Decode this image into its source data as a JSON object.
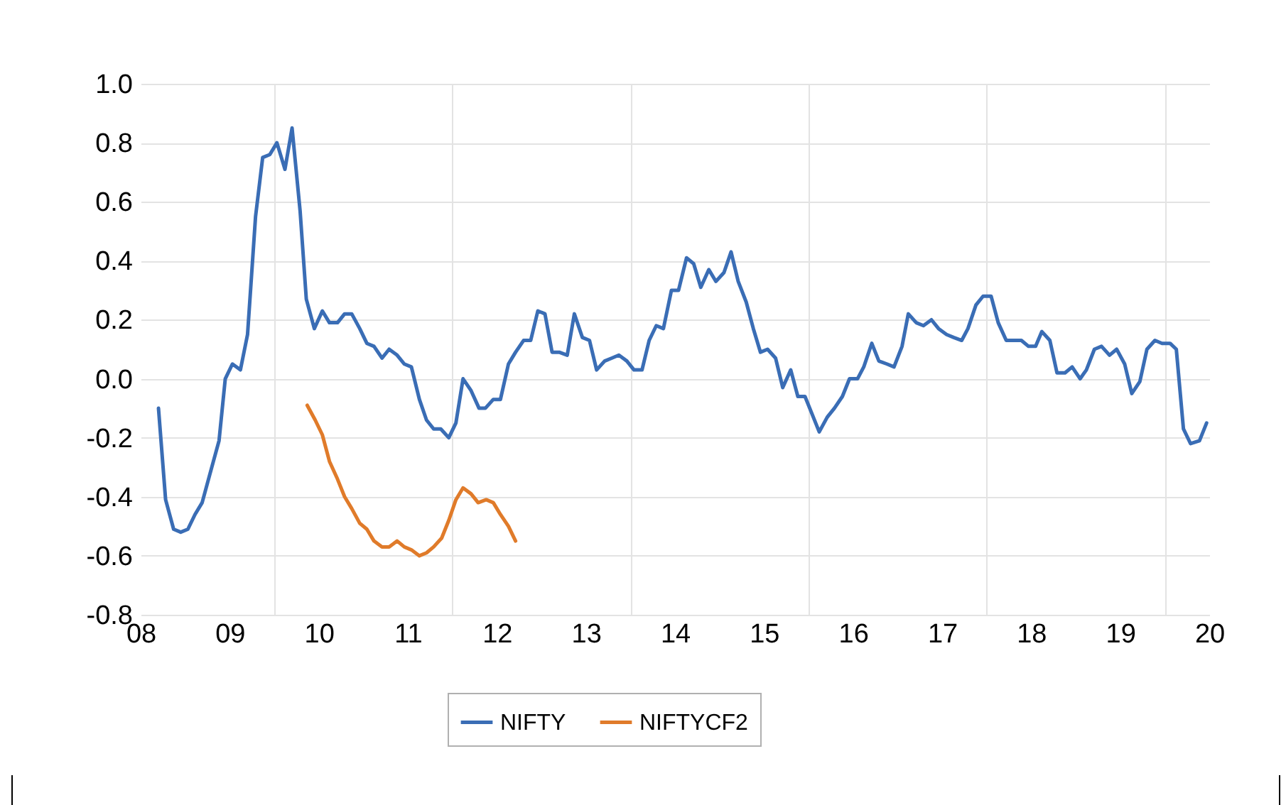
{
  "chart_data": {
    "type": "line",
    "legend": "bottom",
    "grid": true,
    "line_style": "solid",
    "marker": "none",
    "xlim": [
      2008,
      2020
    ],
    "xticks": [
      {
        "value": 2008,
        "label": "08"
      },
      {
        "value": 2009,
        "label": "09"
      },
      {
        "value": 2010,
        "label": "10"
      },
      {
        "value": 2011,
        "label": "11"
      },
      {
        "value": 2012,
        "label": "12"
      },
      {
        "value": 2013,
        "label": "13"
      },
      {
        "value": 2014,
        "label": "14"
      },
      {
        "value": 2015,
        "label": "15"
      },
      {
        "value": 2016,
        "label": "16"
      },
      {
        "value": 2017,
        "label": "17"
      },
      {
        "value": 2018,
        "label": "18"
      },
      {
        "value": 2019,
        "label": "19"
      },
      {
        "value": 2020,
        "label": "20"
      },
      {
        "value": 2009.5,
        "label": null
      },
      {
        "value": 2011.5,
        "label": null
      },
      {
        "value": 2013.5,
        "label": null
      },
      {
        "value": 2015.5,
        "label": null
      },
      {
        "value": 2017.5,
        "label": null
      },
      {
        "value": 2019.5,
        "label": null
      }
    ],
    "ylim": [
      -0.8,
      1.0
    ],
    "yticks": [
      {
        "value": -0.8,
        "label": "-0.8"
      },
      {
        "value": -0.6,
        "label": "-0.6"
      },
      {
        "value": -0.4,
        "label": "-0.4"
      },
      {
        "value": -0.2,
        "label": "-0.2"
      },
      {
        "value": 0,
        "label": "0.0"
      },
      {
        "value": 0.2,
        "label": "0.2"
      },
      {
        "value": 0.4,
        "label": "0.4"
      },
      {
        "value": 0.6,
        "label": "0.6"
      },
      {
        "value": 0.8,
        "label": "0.8"
      },
      {
        "value": 1.0,
        "label": "1.0"
      }
    ],
    "series": [
      {
        "name": "NIFTY",
        "color": "#3a6db5",
        "x": [
          2008.2,
          2008.28,
          2008.37,
          2008.45,
          2008.53,
          2008.61,
          2008.69,
          2008.78,
          2008.88,
          2008.95,
          2009.03,
          2009.12,
          2009.2,
          2009.29,
          2009.37,
          2009.45,
          2009.53,
          2009.62,
          2009.7,
          2009.79,
          2009.86,
          2009.95,
          2010.04,
          2010.12,
          2010.21,
          2010.29,
          2010.37,
          2010.46,
          2010.54,
          2010.62,
          2010.71,
          2010.79,
          2010.88,
          2010.96,
          2011.04,
          2011.13,
          2011.21,
          2011.29,
          2011.37,
          2011.46,
          2011.54,
          2011.62,
          2011.71,
          2011.8,
          2011.87,
          2011.96,
          2012.04,
          2012.13,
          2012.21,
          2012.3,
          2012.38,
          2012.46,
          2012.54,
          2012.62,
          2012.7,
          2012.79,
          2012.87,
          2012.96,
          2013.04,
          2013.12,
          2013.21,
          2013.29,
          2013.37,
          2013.46,
          2013.54,
          2013.63,
          2013.71,
          2013.79,
          2013.87,
          2013.96,
          2014.04,
          2014.13,
          2014.21,
          2014.29,
          2014.38,
          2014.46,
          2014.55,
          2014.63,
          2014.71,
          2014.8,
          2014.88,
          2014.96,
          2015.04,
          2015.13,
          2015.21,
          2015.3,
          2015.38,
          2015.46,
          2015.54,
          2015.62,
          2015.71,
          2015.79,
          2015.88,
          2015.96,
          2016.05,
          2016.12,
          2016.21,
          2016.29,
          2016.38,
          2016.46,
          2016.55,
          2016.62,
          2016.71,
          2016.79,
          2016.88,
          2016.96,
          2017.05,
          2017.13,
          2017.22,
          2017.29,
          2017.38,
          2017.46,
          2017.55,
          2017.63,
          2017.72,
          2017.8,
          2017.89,
          2017.97,
          2018.05,
          2018.12,
          2018.21,
          2018.29,
          2018.38,
          2018.46,
          2018.55,
          2018.62,
          2018.71,
          2018.79,
          2018.88,
          2018.96,
          2019.05,
          2019.13,
          2019.22,
          2019.3,
          2019.39,
          2019.47,
          2019.56,
          2019.63,
          2019.71,
          2019.79,
          2019.89,
          2019.97
        ],
        "values": [
          -0.1,
          -0.41,
          -0.51,
          -0.52,
          -0.51,
          -0.46,
          -0.42,
          -0.32,
          -0.21,
          0.0,
          0.05,
          0.03,
          0.15,
          0.55,
          0.75,
          0.76,
          0.8,
          0.71,
          0.85,
          0.57,
          0.27,
          0.17,
          0.23,
          0.19,
          0.19,
          0.22,
          0.22,
          0.17,
          0.12,
          0.11,
          0.07,
          0.1,
          0.08,
          0.05,
          0.04,
          -0.07,
          -0.14,
          -0.17,
          -0.17,
          -0.2,
          -0.15,
          0.0,
          -0.04,
          -0.1,
          -0.1,
          -0.07,
          -0.07,
          0.05,
          0.09,
          0.13,
          0.13,
          0.23,
          0.22,
          0.09,
          0.09,
          0.08,
          0.22,
          0.14,
          0.13,
          0.03,
          0.06,
          0.07,
          0.08,
          0.06,
          0.03,
          0.03,
          0.13,
          0.18,
          0.17,
          0.3,
          0.3,
          0.41,
          0.39,
          0.31,
          0.37,
          0.33,
          0.36,
          0.43,
          0.33,
          0.26,
          0.17,
          0.09,
          0.1,
          0.07,
          -0.03,
          0.03,
          -0.06,
          -0.06,
          -0.12,
          -0.18,
          -0.13,
          -0.1,
          -0.06,
          0.0,
          0.0,
          0.04,
          0.12,
          0.06,
          0.05,
          0.04,
          0.11,
          0.22,
          0.19,
          0.18,
          0.2,
          0.17,
          0.15,
          0.14,
          0.13,
          0.17,
          0.25,
          0.28,
          0.28,
          0.19,
          0.13,
          0.13,
          0.13,
          0.11,
          0.11,
          0.16,
          0.13,
          0.02,
          0.02,
          0.04,
          0.0,
          0.03,
          0.1,
          0.11,
          0.08,
          0.1,
          0.05,
          -0.05,
          -0.01,
          0.1,
          0.13,
          0.12,
          0.12,
          0.1,
          -0.17,
          -0.22,
          -0.21,
          -0.15
        ]
      },
      {
        "name": "NIFTYCF2",
        "color": "#e07b2a",
        "x": [
          2009.87,
          2009.96,
          2010.04,
          2010.12,
          2010.21,
          2010.29,
          2010.37,
          2010.46,
          2010.54,
          2010.62,
          2010.71,
          2010.79,
          2010.88,
          2010.96,
          2011.04,
          2011.13,
          2011.21,
          2011.29,
          2011.38,
          2011.46,
          2011.54,
          2011.62,
          2011.71,
          2011.79,
          2011.88,
          2011.96,
          2012.04,
          2012.13,
          2012.21
        ],
        "values": [
          -0.09,
          -0.14,
          -0.19,
          -0.28,
          -0.34,
          -0.4,
          -0.44,
          -0.49,
          -0.51,
          -0.55,
          -0.57,
          -0.57,
          -0.55,
          -0.57,
          -0.58,
          -0.6,
          -0.59,
          -0.57,
          -0.54,
          -0.48,
          -0.41,
          -0.37,
          -0.39,
          -0.42,
          -0.41,
          -0.42,
          -0.46,
          -0.5,
          -0.55
        ]
      }
    ]
  }
}
